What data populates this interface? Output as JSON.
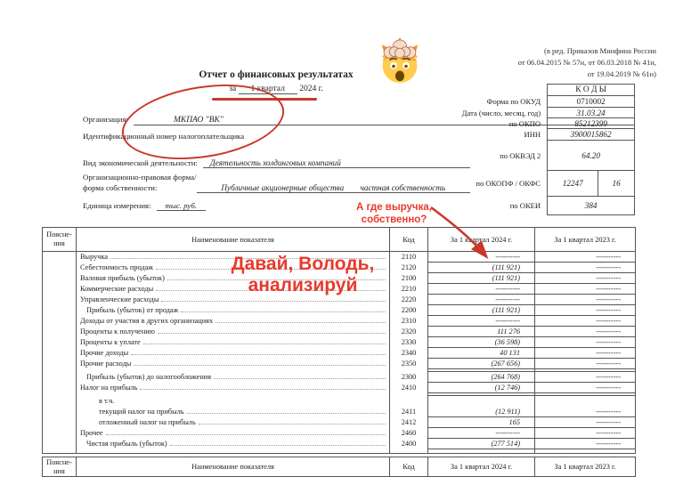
{
  "colors": {
    "accent_red": "#c8392b",
    "annotation_red": "#e8392c",
    "ink": "#222222",
    "line": "#555555"
  },
  "header": {
    "amendment_lines": [
      "(в ред. Приказов Минфина России",
      "от 06.04.2015 № 57н, от 06.03.2018 № 41н,",
      "от 19.04.2019 № 61н)"
    ],
    "title": "Отчет о финансовых результатах",
    "period_prefix": "за",
    "period_value": "1 квартал",
    "period_suffix": "2024 г."
  },
  "org": {
    "label": "Организация:",
    "value": "МКПАО \"ВК\"",
    "inn_caption": "Идентификационный номер налогоплательщика",
    "activity_label": "Вид экономической деятельности:",
    "activity_value": "Деятельность холдинговых компаний",
    "legal_form_label_line1": "Организационно-правовая форма/",
    "legal_form_label_line2": "форма собственности:",
    "legal_form_value": "Публичные акционерные общества",
    "ownership_value": "частная собственность",
    "unit_label": "Единица измерения:",
    "unit_value": "тыс. руб."
  },
  "codes_panel": {
    "title": "К О Д Ы",
    "rows": [
      {
        "label": "Форма по ОКУД",
        "value": "0710002",
        "plain": true
      },
      {
        "label": "Дата (число, месяц, год)",
        "value": "31.03.24"
      },
      {
        "label": "по ОКПО",
        "value": "85212399"
      },
      {
        "label": "ИНН",
        "value": "3900015862"
      },
      {
        "label": "по ОКВЭД 2",
        "value": "64.20"
      },
      {
        "label": "по ОКОПФ / ОКФС",
        "value": "12247",
        "value2": "16"
      },
      {
        "label": "по ОКЕИ",
        "value": "384"
      }
    ]
  },
  "table": {
    "headers": {
      "notes": "Поясне-\nния",
      "name": "Наименование показателя",
      "code": "Код",
      "period_2024": "За 1 квартал 2024 г.",
      "period_2023": "За 1 квартал 2023 г."
    },
    "rows": [
      {
        "name": "Выручка",
        "code": "2110",
        "v2024": "----------",
        "v2023": "----------"
      },
      {
        "name": "Себестоимость продаж",
        "code": "2120",
        "v2024": "(111 921)",
        "v2023": "----------"
      },
      {
        "name": "Валовая прибыль (убыток)",
        "code": "2100",
        "v2024": "(111 921)",
        "v2023": "----------"
      },
      {
        "name": "Коммерческие расходы",
        "code": "2210",
        "v2024": "----------",
        "v2023": "----------"
      },
      {
        "name": "Управленческие расходы",
        "code": "2220",
        "v2024": "----------",
        "v2023": "----------"
      },
      {
        "name": "Прибыль (убыток) от продаж",
        "code": "2200",
        "v2024": "(111 921)",
        "v2023": "----------",
        "indent": 1
      },
      {
        "name": "Доходы от участия в других организациях",
        "code": "2310",
        "v2024": "----------",
        "v2023": "----------"
      },
      {
        "name": "Проценты к получению",
        "code": "2320",
        "v2024": "111 276",
        "v2023": "----------"
      },
      {
        "name": "Проценты к уплате",
        "code": "2330",
        "v2024": "(36 598)",
        "v2023": "----------"
      },
      {
        "name": "Прочие доходы",
        "code": "2340",
        "v2024": "40 131",
        "v2023": "----------"
      },
      {
        "name": "Прочие расходы",
        "code": "2350",
        "v2024": "(267 656)",
        "v2023": "----------"
      },
      {
        "name": "Прибыль (убыток) до налогообложения",
        "code": "2300",
        "v2024": "(264 768)",
        "v2023": "----------",
        "indent": 1,
        "gap_before": true
      },
      {
        "name": "Налог на прибыль",
        "code": "2410",
        "v2024": "(12 746)",
        "v2023": "----------"
      },
      {
        "name": "в т.ч.",
        "code": "",
        "v2024": "",
        "v2023": "",
        "indent": 2,
        "no_leader": true,
        "open_box": true,
        "gap_before": true
      },
      {
        "name": "текущий налог на прибыль",
        "code": "2411",
        "v2024": "(12 911)",
        "v2023": "----------",
        "indent": 2,
        "merge_top": true
      },
      {
        "name": "отложенный налог на прибыль",
        "code": "2412",
        "v2024": "165",
        "v2023": "----------",
        "indent": 2
      },
      {
        "name": "Прочее",
        "code": "2460",
        "v2024": "----------",
        "v2023": "----------"
      },
      {
        "name": "Чистая прибыль (убыток)",
        "code": "2400",
        "v2024": "(277 514)",
        "v2023": "----------",
        "indent": 1
      }
    ]
  },
  "annotations": {
    "revenue_question_line1": "А где выручка,",
    "revenue_question_line2": "собственно?",
    "exhortation_line1": "Давай, Володь,",
    "exhortation_line2": "анализируй",
    "emoji_name": "exploding-head"
  }
}
